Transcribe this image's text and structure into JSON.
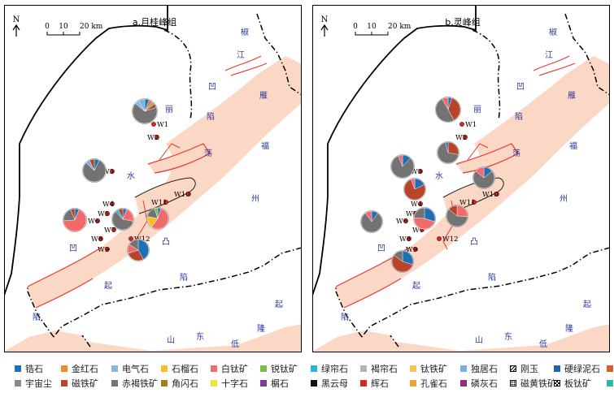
{
  "colors": {
    "basin": "#fbd7c6",
    "fault_red": "#e8382d",
    "station": "#d42a26",
    "region_label": "#2a3a9a"
  },
  "map_labels": {
    "north": "N",
    "scale_ticks": [
      "0",
      "10",
      "20 km"
    ],
    "region_chars": [
      "椒",
      "江",
      "凹",
      "雁",
      "陷",
      "丽",
      "荡",
      "福",
      "水",
      "州",
      "凸",
      "凹",
      "起",
      "陷",
      "陷",
      "起",
      "东",
      "隆",
      "渔",
      "山",
      "低",
      "起"
    ]
  },
  "panels": [
    {
      "title": "a.月桂峰组",
      "stations": [
        {
          "id": "W1"
        },
        {
          "id": "W2"
        },
        {
          "id": "W3"
        },
        {
          "id": "W4"
        },
        {
          "id": "W5"
        },
        {
          "id": "W6"
        },
        {
          "id": "W7"
        },
        {
          "id": "W8"
        },
        {
          "id": "W9"
        },
        {
          "id": "W10"
        },
        {
          "id": "W11"
        },
        {
          "id": "W12"
        }
      ],
      "pies": [
        {
          "station": "W1",
          "slices": [
            [
              "zircon",
              0.06
            ],
            [
              "leucoxene",
              0.05
            ],
            [
              "anatase",
              0.04
            ],
            [
              "magnetite",
              0.05
            ],
            [
              "hematite_limonite",
              0.66
            ],
            [
              "tourmaline",
              0.06
            ],
            [
              "monazite",
              0.08
            ]
          ]
        },
        {
          "station": "W3",
          "slices": [
            [
              "zircon",
              0.07
            ],
            [
              "hematite_limonite",
              0.8
            ],
            [
              "monazite",
              0.06
            ],
            [
              "magnetite",
              0.07
            ]
          ]
        },
        {
          "station": "W6",
          "slices": [
            [
              "zircon",
              0.06
            ],
            [
              "leucoxene",
              0.68
            ],
            [
              "hematite_limonite",
              0.2
            ],
            [
              "magnetite",
              0.06
            ]
          ]
        },
        {
          "station": "W7",
          "slices": [
            [
              "zircon",
              0.06
            ],
            [
              "leucoxene",
              0.22
            ],
            [
              "hematite_limonite",
              0.6
            ],
            [
              "epidote",
              0.05
            ],
            [
              "magnetite",
              0.07
            ]
          ]
        },
        {
          "station": "W11",
          "slices": [
            [
              "zircon",
              0.05
            ],
            [
              "leucoxene",
              0.55
            ],
            [
              "garnet",
              0.18
            ],
            [
              "hematite_limonite",
              0.17
            ],
            [
              "anatase",
              0.05
            ]
          ]
        },
        {
          "station": "W12",
          "slices": [
            [
              "zircon",
              0.42
            ],
            [
              "magnetite",
              0.28
            ],
            [
              "leucoxene",
              0.14
            ],
            [
              "hematite_limonite",
              0.16
            ]
          ]
        }
      ]
    },
    {
      "title": "b.灵峰组",
      "stations": [
        {
          "id": "W1"
        },
        {
          "id": "W2"
        },
        {
          "id": "W3"
        },
        {
          "id": "W4"
        },
        {
          "id": "W5"
        },
        {
          "id": "W6"
        },
        {
          "id": "W7"
        },
        {
          "id": "W8"
        },
        {
          "id": "W9"
        },
        {
          "id": "W10"
        },
        {
          "id": "W11"
        },
        {
          "id": "W12"
        }
      ],
      "pies": [
        {
          "station": "W1",
          "slices": [
            [
              "zircon",
              0.05
            ],
            [
              "magnetite",
              0.37
            ],
            [
              "hematite_limonite",
              0.5
            ],
            [
              "leucoxene",
              0.08
            ]
          ]
        },
        {
          "station": "W2",
          "slices": [
            [
              "magnetite",
              0.28
            ],
            [
              "hematite_limonite",
              0.68
            ],
            [
              "zircon",
              0.04
            ]
          ]
        },
        {
          "station": "W3",
          "slices": [
            [
              "zircon",
              0.12
            ],
            [
              "hematite_limonite",
              0.82
            ],
            [
              "leucoxene",
              0.06
            ]
          ]
        },
        {
          "station": "W4",
          "slices": [
            [
              "zircon",
              0.18
            ],
            [
              "magnetite",
              0.76
            ],
            [
              "leucoxene",
              0.06
            ]
          ]
        },
        {
          "station": "W6",
          "slices": [
            [
              "zircon",
              0.1
            ],
            [
              "hematite_limonite",
              0.8
            ],
            [
              "leucoxene",
              0.1
            ]
          ]
        },
        {
          "station": "W7",
          "slices": [
            [
              "zircon",
              0.3
            ],
            [
              "leucoxene",
              0.46
            ],
            [
              "hematite_limonite",
              0.24
            ]
          ]
        },
        {
          "station": "W9",
          "slices": [
            [
              "zircon",
              0.3
            ],
            [
              "magnetite",
              0.55
            ],
            [
              "hematite_limonite",
              0.15
            ]
          ]
        },
        {
          "station": "W10",
          "slices": [
            [
              "zircon",
              0.14
            ],
            [
              "hematite_limonite",
              0.72
            ],
            [
              "leucoxene",
              0.14
            ]
          ]
        },
        {
          "station": "W11",
          "slices": [
            [
              "leucoxene",
              0.26
            ],
            [
              "hematite_limonite",
              0.6
            ],
            [
              "magnetite",
              0.14
            ]
          ]
        }
      ]
    }
  ],
  "legend": [
    [
      {
        "key": "zircon",
        "label": "锆石",
        "color": "#1f6fb5"
      },
      {
        "key": "rutile",
        "label": "金红石",
        "color": "#ee8a2e"
      },
      {
        "key": "tourmaline",
        "label": "电气石",
        "color": "#8ab7e0"
      },
      {
        "key": "garnet",
        "label": "石榴石",
        "color": "#f6c02a"
      },
      {
        "key": "leucoxene",
        "label": "白钛矿",
        "color": "#f26b6b"
      },
      {
        "key": "anatase",
        "label": "锐钛矿",
        "color": "#7dbb45"
      },
      {
        "key": "epidote",
        "label": "绿帘石",
        "color": "#29b6d6"
      },
      {
        "key": "brown_epidote",
        "label": "褐帘石",
        "color": "#b3b3b3"
      },
      {
        "key": "ilmenite",
        "label": "钛铁矿",
        "color": "#f5c45a"
      },
      {
        "key": "monazite",
        "label": "独居石",
        "color": "#79b0de"
      },
      {
        "key": "corundum",
        "label": "刚玉",
        "color": "hatch"
      },
      {
        "key": "chloritoid",
        "label": "硬绿泥石",
        "color": "#1f63a8"
      },
      {
        "key": "chlorite",
        "label": "绿泥石",
        "color": "#d4602c"
      }
    ],
    [
      {
        "key": "cosmic_dust",
        "label": "宇宙尘",
        "color": "#8a8a8a"
      },
      {
        "key": "magnetite",
        "label": "磁铁矿",
        "color": "#b8452a"
      },
      {
        "key": "hematite_limonite",
        "label": "赤褐铁矿",
        "color": "#737373"
      },
      {
        "key": "hornblende",
        "label": "角闪石",
        "color": "#a67c1c"
      },
      {
        "key": "staurolite",
        "label": "十字石",
        "color": "#f7e03a"
      },
      {
        "key": "sphene",
        "label": "榍石",
        "color": "#7a3f9a"
      },
      {
        "key": "biotite",
        "label": "黑云母",
        "color": "#111111"
      },
      {
        "key": "pyroxene",
        "label": "辉石",
        "color": "#d62828"
      },
      {
        "key": "malachite",
        "label": "孔雀石",
        "color": "#e8a53a"
      },
      {
        "key": "apatite",
        "label": "磷灰石",
        "color": "#8e2f8a"
      },
      {
        "key": "pyrrhotite",
        "label": "磁黄铁矿",
        "color": "dotted"
      },
      {
        "key": "brookite",
        "label": "板钛矿",
        "color": "checker"
      },
      {
        "key": "kyanite",
        "label": "蓝晶石",
        "color": "#2fb5ad"
      }
    ]
  ]
}
